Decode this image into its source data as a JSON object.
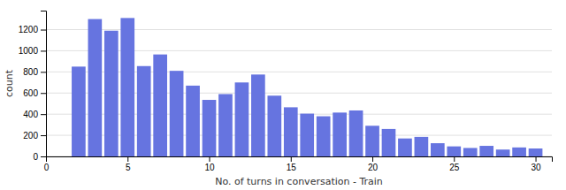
{
  "chart_data": {
    "type": "bar",
    "x": [
      2,
      3,
      4,
      5,
      6,
      7,
      8,
      9,
      10,
      11,
      12,
      13,
      14,
      15,
      16,
      17,
      18,
      19,
      20,
      21,
      22,
      23,
      24,
      25,
      26,
      27,
      28,
      29,
      30
    ],
    "values": [
      850,
      1300,
      1190,
      1310,
      855,
      965,
      810,
      670,
      535,
      590,
      700,
      775,
      575,
      465,
      405,
      380,
      415,
      435,
      290,
      260,
      170,
      185,
      125,
      95,
      80,
      100,
      65,
      85,
      75
    ],
    "color": "#6674e0",
    "xlabel": "No. of turns in conversation - Train",
    "ylabel": "count",
    "xlim": [
      0,
      31
    ],
    "ylim": [
      0,
      1380
    ],
    "xticks": [
      0,
      5,
      10,
      15,
      20,
      25,
      30
    ],
    "yticks": [
      0,
      200,
      400,
      600,
      800,
      1000,
      1200
    ],
    "grid": true
  }
}
